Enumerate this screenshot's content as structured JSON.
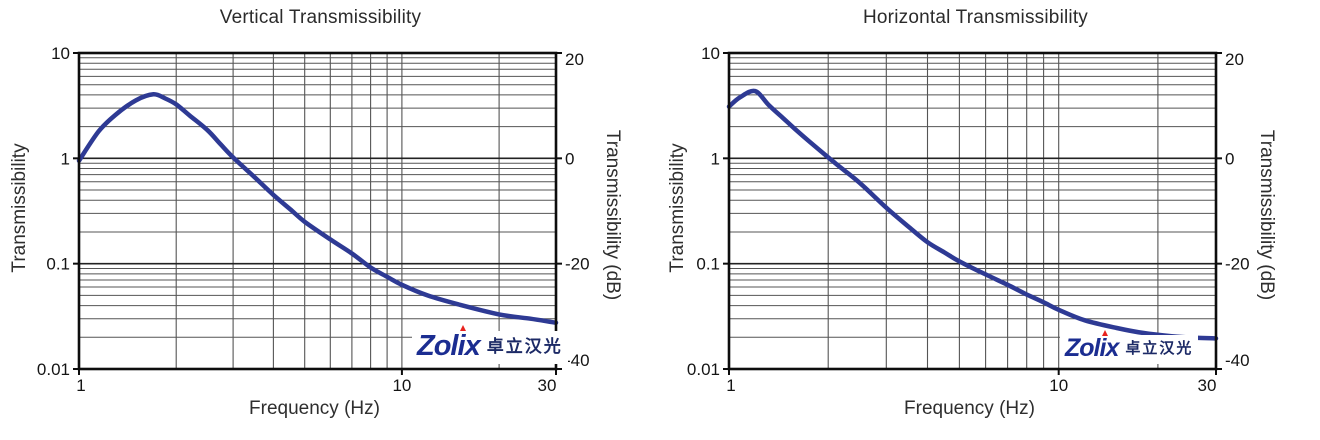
{
  "page": {
    "background": "#ffffff"
  },
  "logo": {
    "brand": "Zolix",
    "cjk": "卓立汉光",
    "brand_color": "#1b2d91",
    "accent_color": "#e8231f"
  },
  "style": {
    "curve_color": "#2e3a94",
    "grid_minor_color": "#555555",
    "grid_major_color": "#222222",
    "frame_color": "#0d0d0d",
    "text_color": "#141414"
  },
  "chart_data": [
    {
      "type": "line",
      "title": "Vertical Transmissibility",
      "xlabel": "Frequency (Hz)",
      "ylabel_left": "Transmissibility",
      "ylabel_right": "Transmissibility (dB)",
      "x_scale": "log",
      "y_scale": "log",
      "xlim": [
        1,
        30
      ],
      "ylim": [
        0.01,
        10
      ],
      "ylim_right_db": [
        -40,
        20
      ],
      "x_tick_values": [
        1,
        10,
        30
      ],
      "x_tick_labels": [
        "1",
        "10",
        "30"
      ],
      "y_tick_values_left": [
        10,
        1,
        0.1,
        0.01
      ],
      "y_tick_labels_left": [
        "10",
        "1",
        "0.1",
        "0.01"
      ],
      "y_tick_values_right": [
        20,
        0,
        -20,
        -40
      ],
      "y_tick_labels_right": [
        "20",
        "0",
        "-20",
        "-40"
      ],
      "grid": "full log minor+major grid, framed",
      "legend": "none",
      "series": [
        {
          "name": "vertical-transmissibility-curve",
          "color": "#2e3a94",
          "points": [
            [
              1,
              0.95
            ],
            [
              1.15,
              1.8
            ],
            [
              1.3,
              2.6
            ],
            [
              1.5,
              3.55
            ],
            [
              1.7,
              4.05
            ],
            [
              1.85,
              3.7
            ],
            [
              2,
              3.25
            ],
            [
              2.2,
              2.55
            ],
            [
              2.5,
              1.85
            ],
            [
              2.75,
              1.35
            ],
            [
              3,
              1.02
            ],
            [
              3.5,
              0.66
            ],
            [
              4,
              0.45
            ],
            [
              4.5,
              0.33
            ],
            [
              5,
              0.25
            ],
            [
              6,
              0.17
            ],
            [
              7,
              0.125
            ],
            [
              8,
              0.092
            ],
            [
              9,
              0.075
            ],
            [
              10,
              0.063
            ],
            [
              12,
              0.05
            ],
            [
              15,
              0.041
            ],
            [
              20,
              0.033
            ],
            [
              25,
              0.03
            ],
            [
              30,
              0.0275
            ]
          ]
        }
      ],
      "peak": {
        "frequency_hz": 1.7,
        "transmissibility": 4.05
      }
    },
    {
      "type": "line",
      "title": "Horizontal Transmissibility",
      "xlabel": "Frequency (Hz)",
      "ylabel_left": "Transmissibility",
      "ylabel_right": "Transmissibility (dB)",
      "x_scale": "log",
      "y_scale": "log",
      "xlim": [
        1,
        30
      ],
      "ylim": [
        0.01,
        10
      ],
      "ylim_right_db": [
        -40,
        20
      ],
      "x_tick_values": [
        1,
        10,
        30
      ],
      "x_tick_labels": [
        "1",
        "10",
        "30"
      ],
      "y_tick_values_left": [
        10,
        1,
        0.1,
        0.01
      ],
      "y_tick_labels_left": [
        "10",
        "1",
        "0.1",
        "0.01"
      ],
      "y_tick_values_right": [
        20,
        0,
        -20,
        -40
      ],
      "y_tick_labels_right": [
        "20",
        "0",
        "-20",
        "-40"
      ],
      "grid": "full log minor+major grid, framed",
      "legend": "none",
      "series": [
        {
          "name": "horizontal-transmissibility-curve",
          "color": "#2e3a94",
          "points": [
            [
              1,
              3.1
            ],
            [
              1.08,
              3.8
            ],
            [
              1.2,
              4.35
            ],
            [
              1.32,
              3.2
            ],
            [
              1.45,
              2.45
            ],
            [
              1.6,
              1.85
            ],
            [
              1.75,
              1.45
            ],
            [
              2,
              1.02
            ],
            [
              2.2,
              0.8
            ],
            [
              2.5,
              0.58
            ],
            [
              3,
              0.34
            ],
            [
              3.5,
              0.225
            ],
            [
              4,
              0.16
            ],
            [
              4.5,
              0.128
            ],
            [
              5,
              0.105
            ],
            [
              6,
              0.079
            ],
            [
              7,
              0.063
            ],
            [
              8,
              0.051
            ],
            [
              9,
              0.043
            ],
            [
              10,
              0.0365
            ],
            [
              12,
              0.029
            ],
            [
              15,
              0.0245
            ],
            [
              18,
              0.022
            ],
            [
              22,
              0.0205
            ],
            [
              26,
              0.0198
            ],
            [
              30,
              0.0195
            ]
          ]
        }
      ],
      "peak": {
        "frequency_hz": 1.2,
        "transmissibility": 4.35
      }
    }
  ]
}
